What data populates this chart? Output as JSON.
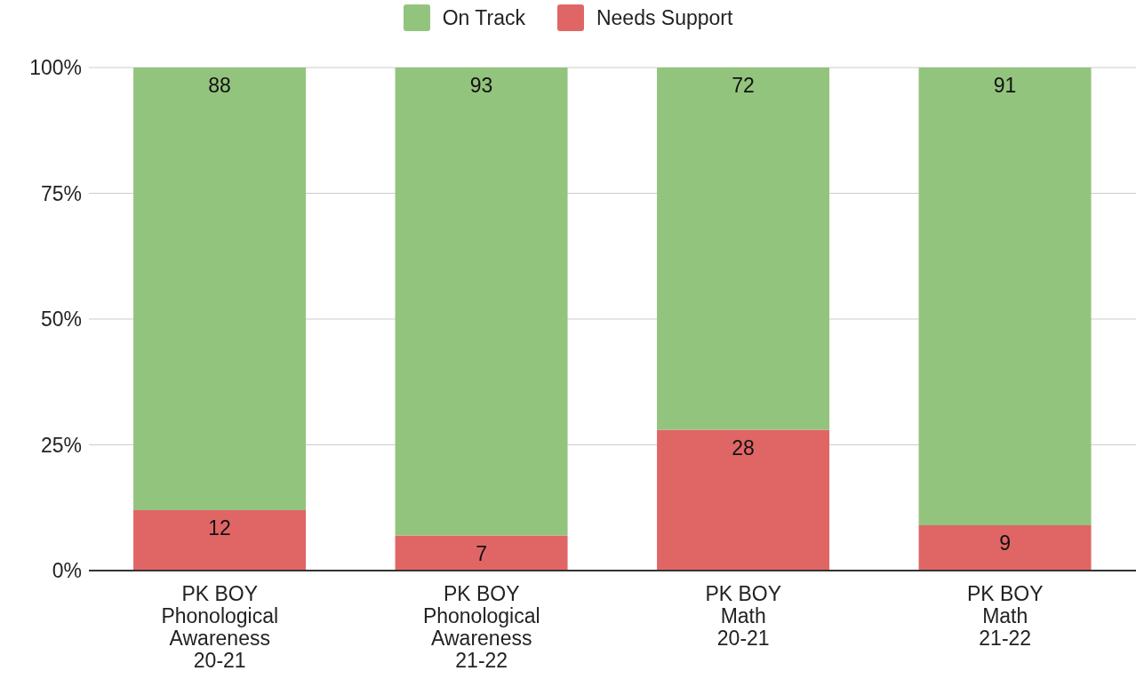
{
  "chart_data": {
    "type": "bar",
    "stacked": true,
    "categories": [
      "PK BOY Phonological Awareness 20-21",
      "PK BOY Phonological Awareness 21-22",
      "PK BOY Math 20-21",
      "PK BOY Math 21-22"
    ],
    "series": [
      {
        "name": "Needs Support",
        "color": "#e06666",
        "values": [
          12,
          7,
          28,
          9
        ]
      },
      {
        "name": "On Track",
        "color": "#93c47d",
        "values": [
          88,
          93,
          72,
          91
        ]
      }
    ],
    "ylim": [
      0,
      100
    ],
    "yticks": [
      {
        "value": 0,
        "label": "0%"
      },
      {
        "value": 25,
        "label": "25%"
      },
      {
        "value": 50,
        "label": "50%"
      },
      {
        "value": 75,
        "label": "75%"
      },
      {
        "value": 100,
        "label": "100%"
      }
    ],
    "grid": "y",
    "legend": "top",
    "data_labels": true
  }
}
